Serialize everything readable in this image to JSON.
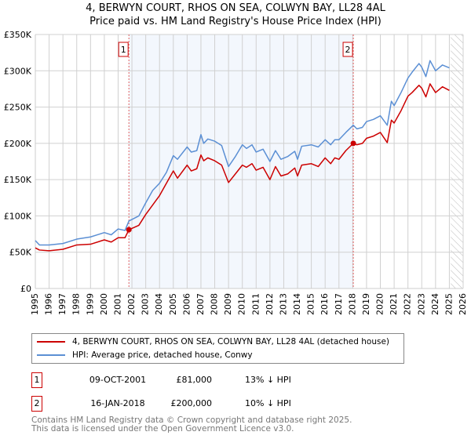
{
  "title_line1": "4, BERWYN COURT, RHOS ON SEA, COLWYN BAY, LL28 4AL",
  "title_line2": "Price paid vs. HM Land Registry's House Price Index (HPI)",
  "chart_data": {
    "type": "line",
    "xlim": [
      1995,
      2026
    ],
    "ylim": [
      0,
      350000
    ],
    "x_ticks": [
      "1995",
      "1996",
      "1997",
      "1998",
      "1999",
      "2000",
      "2001",
      "2002",
      "2003",
      "2004",
      "2005",
      "2006",
      "2007",
      "2008",
      "2009",
      "2010",
      "2011",
      "2012",
      "2013",
      "2014",
      "2015",
      "2016",
      "2017",
      "2018",
      "2019",
      "2020",
      "2021",
      "2022",
      "2023",
      "2024",
      "2025",
      "2026"
    ],
    "y_ticks": [
      {
        "v": 0,
        "label": "£0"
      },
      {
        "v": 50000,
        "label": "£50K"
      },
      {
        "v": 100000,
        "label": "£100K"
      },
      {
        "v": 150000,
        "label": "£150K"
      },
      {
        "v": 200000,
        "label": "£200K"
      },
      {
        "v": 250000,
        "label": "£250K"
      },
      {
        "v": 300000,
        "label": "£300K"
      },
      {
        "v": 350000,
        "label": "£350K"
      }
    ],
    "grid": true,
    "shaded_period": [
      2001.78,
      2018.04
    ],
    "forecast_hatch_from": 2025.1,
    "series": [
      {
        "name": "4, BERWYN COURT, RHOS ON SEA, COLWYN BAY, LL28 4AL (detached house)",
        "color": "#cc0000",
        "x": [
          1995,
          1995.3,
          1996,
          1997,
          1998,
          1999,
          2000,
          2000.5,
          2001,
          2001.5,
          2001.78,
          2002.5,
          2003,
          2003.5,
          2004,
          2004.5,
          2005,
          2005.3,
          2006,
          2006.3,
          2006.7,
          2007,
          2007.2,
          2007.5,
          2008,
          2008.5,
          2009,
          2009.5,
          2010,
          2010.3,
          2010.7,
          2011,
          2011.5,
          2012,
          2012.4,
          2012.8,
          2013.3,
          2013.8,
          2014,
          2014.3,
          2015,
          2015.5,
          2016,
          2016.4,
          2016.7,
          2017,
          2017.5,
          2018.04,
          2018.3,
          2018.7,
          2019,
          2019.5,
          2020,
          2020.5,
          2020.8,
          2021,
          2021.5,
          2022,
          2022.3,
          2022.8,
          2023,
          2023.3,
          2023.6,
          2024,
          2024.5,
          2025
        ],
        "y": [
          56,
          53,
          52,
          54,
          60,
          61,
          67,
          64,
          70,
          70,
          81,
          87,
          102,
          115,
          128,
          145,
          162,
          152,
          170,
          162,
          165,
          184,
          176,
          180,
          176,
          170,
          146,
          158,
          170,
          167,
          172,
          163,
          167,
          150,
          168,
          155,
          158,
          166,
          155,
          170,
          172,
          168,
          180,
          172,
          180,
          178,
          190,
          200,
          198,
          200,
          207,
          210,
          215,
          201,
          232,
          228,
          245,
          265,
          270,
          280,
          276,
          264,
          282,
          270,
          278,
          273
        ],
        "y_unit": "thousand GBP"
      },
      {
        "name": "HPI: Average price, detached house, Conwy",
        "color": "#5b8fd4",
        "x": [
          1995,
          1995.3,
          1996,
          1997,
          1998,
          1999,
          2000,
          2000.5,
          2001,
          2001.5,
          2001.78,
          2002.5,
          2003,
          2003.5,
          2004,
          2004.5,
          2005,
          2005.3,
          2006,
          2006.3,
          2006.7,
          2007,
          2007.2,
          2007.5,
          2008,
          2008.5,
          2009,
          2009.5,
          2010,
          2010.3,
          2010.7,
          2011,
          2011.5,
          2012,
          2012.4,
          2012.8,
          2013.3,
          2013.8,
          2014,
          2014.3,
          2015,
          2015.5,
          2016,
          2016.4,
          2016.7,
          2017,
          2017.5,
          2018.04,
          2018.3,
          2018.7,
          2019,
          2019.5,
          2020,
          2020.5,
          2020.8,
          2021,
          2021.5,
          2022,
          2022.3,
          2022.8,
          2023,
          2023.3,
          2023.6,
          2024,
          2024.5,
          2025
        ],
        "y": [
          66,
          60,
          60,
          62,
          68,
          71,
          77,
          74,
          82,
          80,
          93,
          100,
          118,
          135,
          145,
          160,
          183,
          178,
          195,
          188,
          190,
          212,
          200,
          206,
          203,
          197,
          168,
          182,
          198,
          193,
          198,
          188,
          192,
          175,
          190,
          178,
          182,
          189,
          178,
          196,
          198,
          195,
          205,
          198,
          205,
          205,
          215,
          225,
          220,
          222,
          230,
          233,
          238,
          225,
          258,
          252,
          270,
          290,
          298,
          310,
          305,
          292,
          314,
          300,
          308,
          304
        ],
        "y_unit": "thousand GBP"
      }
    ],
    "markers": [
      {
        "label": "1",
        "x": 2001.78,
        "y": 81
      },
      {
        "label": "2",
        "x": 2018.04,
        "y": 200
      }
    ]
  },
  "legend": {
    "property": "4, BERWYN COURT, RHOS ON SEA, COLWYN BAY, LL28 4AL (detached house)",
    "hpi": "HPI: Average price, detached house, Conwy"
  },
  "transactions": [
    {
      "num": "1",
      "date": "09-OCT-2001",
      "price": "£81,000",
      "hpi": "13% ↓ HPI"
    },
    {
      "num": "2",
      "date": "16-JAN-2018",
      "price": "£200,000",
      "hpi": "10% ↓ HPI"
    }
  ],
  "footer_line1": "Contains HM Land Registry data © Crown copyright and database right 2025.",
  "footer_line2": "This data is licensed under the Open Government Licence v3.0."
}
